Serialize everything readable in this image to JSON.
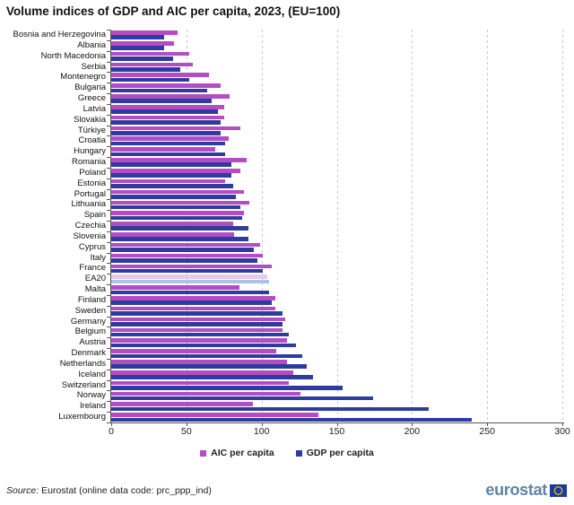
{
  "title": "Volume indices of GDP and AIC per capita, 2023, (EU=100)",
  "chart_data": {
    "type": "bar",
    "orientation": "horizontal",
    "title": "Volume indices of GDP and AIC per capita, 2023, (EU=100)",
    "xlabel": "",
    "ylabel": "",
    "xlim": [
      0,
      300
    ],
    "xticks": [
      0,
      50,
      100,
      150,
      200,
      250,
      300
    ],
    "grid": "vertical-dashed",
    "legend_position": "bottom-center",
    "highlight_category": "EA20",
    "categories": [
      "Bosnia and Herzegovina",
      "Albania",
      "North Macedonia",
      "Serbia",
      "Montenegro",
      "Bulgaria",
      "Greece",
      "Latvia",
      "Slovakia",
      "Türkiye",
      "Croatia",
      "Hungary",
      "Romania",
      "Poland",
      "Estonia",
      "Portugal",
      "Lithuania",
      "Spain",
      "Czechia",
      "Slovenia",
      "Cyprus",
      "Italy",
      "France",
      "EA20",
      "Malta",
      "Finland",
      "Sweden",
      "Germany",
      "Belgium",
      "Austria",
      "Denmark",
      "Netherlands",
      "Iceland",
      "Switzerland",
      "Norway",
      "Ireland",
      "Luxembourg"
    ],
    "series": [
      {
        "name": "AIC per capita",
        "color": "#b54cc4",
        "highlight_color": "#e9c8e8",
        "values": [
          44,
          42,
          52,
          54,
          65,
          73,
          79,
          75,
          75,
          86,
          78,
          69,
          90,
          86,
          76,
          88,
          92,
          88,
          81,
          82,
          99,
          101,
          107,
          104,
          85,
          109,
          109,
          116,
          114,
          117,
          110,
          117,
          121,
          118,
          126,
          94,
          138
        ]
      },
      {
        "name": "GDP per capita",
        "color": "#2d3c9e",
        "highlight_color": "#a9c4e8",
        "values": [
          35,
          35,
          41,
          46,
          52,
          64,
          67,
          71,
          73,
          73,
          76,
          76,
          80,
          80,
          81,
          83,
          86,
          87,
          91,
          91,
          95,
          97,
          101,
          105,
          105,
          107,
          114,
          114,
          118,
          123,
          127,
          130,
          134,
          154,
          174,
          211,
          240
        ]
      }
    ]
  },
  "footer": {
    "source_prefix": "Source:",
    "source_text": " Eurostat (online data code: prc_ppp_ind)",
    "logo_text": "eurostat"
  },
  "colors": {
    "aic": "#b54cc4",
    "gdp": "#2d3c9e",
    "aic_highlight": "#e9c8e8",
    "gdp_highlight": "#a9c4e8",
    "gridline": "#c9c9c9",
    "axis": "#555555",
    "logo": "#5d84a3",
    "eu_flag_blue": "#1b3a9e",
    "eu_flag_stars": "#ffd617"
  }
}
